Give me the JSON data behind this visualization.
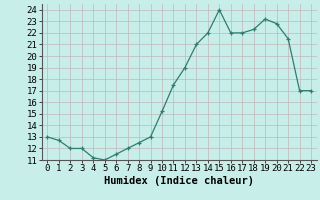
{
  "x": [
    0,
    1,
    2,
    3,
    4,
    5,
    6,
    7,
    8,
    9,
    10,
    11,
    12,
    13,
    14,
    15,
    16,
    17,
    18,
    19,
    20,
    21,
    22,
    23
  ],
  "y": [
    13,
    12.7,
    12,
    12,
    11.2,
    11,
    11.5,
    12,
    12.5,
    13,
    15.2,
    17.5,
    19,
    21,
    22,
    24,
    22,
    22,
    22.3,
    23.2,
    22.8,
    21.5,
    17,
    17
  ],
  "xlabel": "Humidex (Indice chaleur)",
  "xlim": [
    -0.5,
    23.5
  ],
  "ylim": [
    11,
    24.5
  ],
  "yticks": [
    11,
    12,
    13,
    14,
    15,
    16,
    17,
    18,
    19,
    20,
    21,
    22,
    23,
    24
  ],
  "xticks": [
    0,
    1,
    2,
    3,
    4,
    5,
    6,
    7,
    8,
    9,
    10,
    11,
    12,
    13,
    14,
    15,
    16,
    17,
    18,
    19,
    20,
    21,
    22,
    23
  ],
  "line_color": "#2e7d6e",
  "marker": "+",
  "bg_color": "#c8eeea",
  "grid_color": "#c0b8b8",
  "label_fontsize": 7.5,
  "tick_fontsize": 6.5
}
